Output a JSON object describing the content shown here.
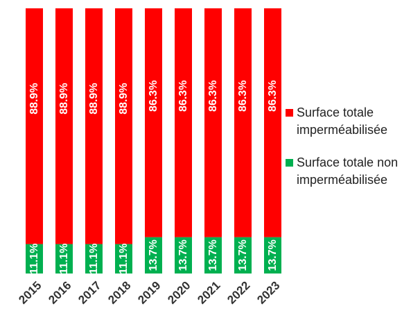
{
  "chart_data": {
    "type": "bar",
    "stacked": "percent",
    "title": "",
    "xlabel": "",
    "ylabel": "",
    "ylim": [
      0,
      100
    ],
    "grid": false,
    "legend_position": "right",
    "categories": [
      "2015",
      "2016",
      "2017",
      "2018",
      "2019",
      "2020",
      "2021",
      "2022",
      "2023"
    ],
    "series": [
      {
        "name": "Surface totale non imperméabilisée",
        "color": "#00b050",
        "values": [
          11.1,
          11.1,
          11.1,
          11.1,
          13.7,
          13.7,
          13.7,
          13.7,
          13.7
        ],
        "labels": [
          "11.1%",
          "11.1%",
          "11.1%",
          "11.1%",
          "13.7%",
          "13.7%",
          "13.7%",
          "13.7%",
          "13.7%"
        ]
      },
      {
        "name": "Surface totale imperméabilisée",
        "color": "#ff0000",
        "values": [
          88.9,
          88.9,
          88.9,
          88.9,
          86.3,
          86.3,
          86.3,
          86.3,
          86.3
        ],
        "labels": [
          "88.9%",
          "88.9%",
          "88.9%",
          "88.9%",
          "86.3%",
          "86.3%",
          "86.3%",
          "86.3%",
          "86.3%"
        ]
      }
    ]
  },
  "legend": {
    "items": [
      {
        "label": "Surface totale imperméabilisée",
        "color": "#ff0000"
      },
      {
        "label": "Surface totale non imperméabilisée",
        "color": "#00b050"
      }
    ]
  }
}
